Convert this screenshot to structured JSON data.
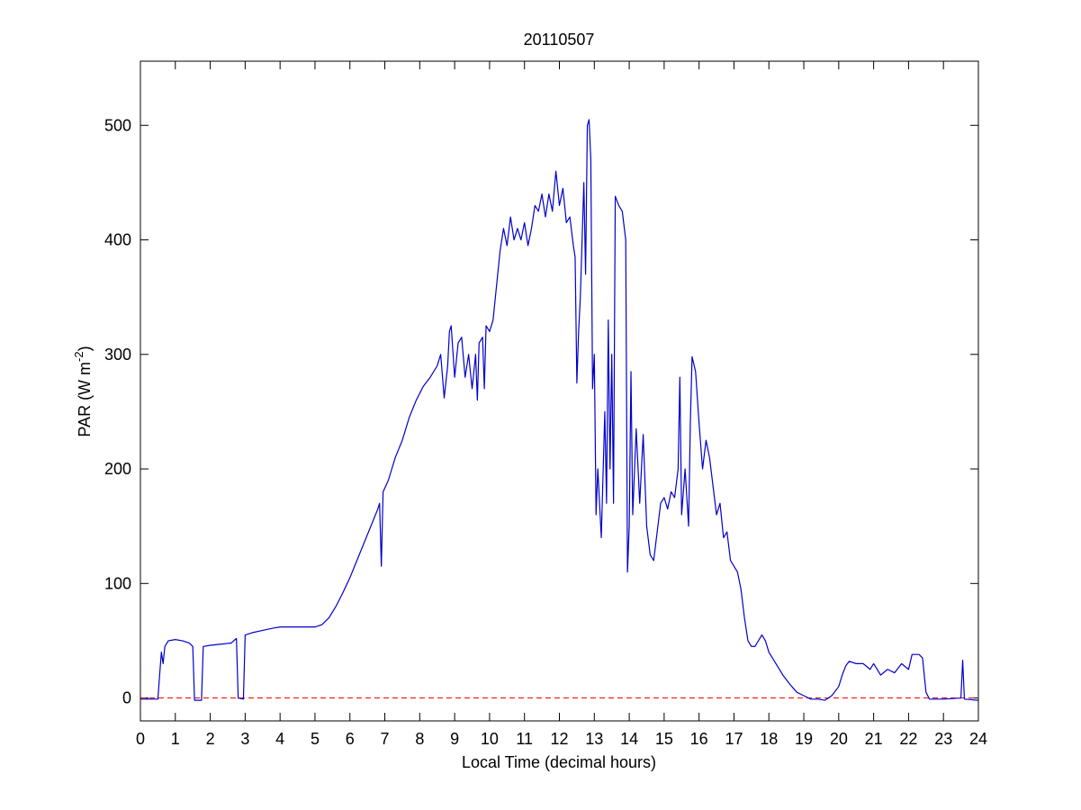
{
  "chart_data": {
    "type": "line",
    "title": "20110507",
    "xlabel": "Local Time (decimal hours)",
    "ylabel": {
      "text": "PAR (W m",
      "superscript": "-2",
      "suffix": ")"
    },
    "xlim": [
      0,
      24
    ],
    "ylim": [
      -20,
      556
    ],
    "xticks": [
      0,
      1,
      2,
      3,
      4,
      5,
      6,
      7,
      8,
      9,
      10,
      11,
      12,
      13,
      14,
      15,
      16,
      17,
      18,
      19,
      20,
      21,
      22,
      23,
      24
    ],
    "yticks": [
      0,
      100,
      200,
      300,
      400,
      500
    ],
    "grid": false,
    "reference_line": {
      "y": 0,
      "color": "#ff0000",
      "style": "dashed"
    },
    "x": [
      0,
      0.5,
      0.55,
      0.6,
      0.65,
      0.7,
      0.8,
      1.0,
      1.2,
      1.4,
      1.5,
      1.55,
      1.75,
      1.8,
      2.0,
      2.3,
      2.6,
      2.75,
      2.8,
      2.95,
      3.0,
      3.2,
      3.5,
      3.8,
      4.0,
      4.5,
      5.0,
      5.2,
      5.4,
      5.6,
      5.8,
      6.0,
      6.2,
      6.4,
      6.6,
      6.8,
      6.85,
      6.9,
      6.95,
      7.1,
      7.3,
      7.5,
      7.7,
      7.9,
      8.1,
      8.3,
      8.5,
      8.6,
      8.7,
      8.8,
      8.85,
      8.9,
      9.0,
      9.1,
      9.2,
      9.3,
      9.4,
      9.5,
      9.6,
      9.65,
      9.7,
      9.8,
      9.85,
      9.9,
      10.0,
      10.1,
      10.2,
      10.3,
      10.4,
      10.5,
      10.6,
      10.7,
      10.8,
      10.9,
      11.0,
      11.1,
      11.2,
      11.3,
      11.4,
      11.5,
      11.6,
      11.7,
      11.8,
      11.9,
      12.0,
      12.1,
      12.2,
      12.3,
      12.4,
      12.45,
      12.5,
      12.55,
      12.6,
      12.7,
      12.75,
      12.8,
      12.85,
      12.9,
      12.95,
      13.0,
      13.05,
      13.1,
      13.2,
      13.3,
      13.35,
      13.4,
      13.45,
      13.5,
      13.55,
      13.6,
      13.7,
      13.8,
      13.9,
      13.95,
      14.0,
      14.05,
      14.1,
      14.2,
      14.3,
      14.4,
      14.5,
      14.6,
      14.7,
      14.8,
      14.9,
      15.0,
      15.1,
      15.2,
      15.3,
      15.4,
      15.45,
      15.5,
      15.6,
      15.7,
      15.75,
      15.8,
      15.9,
      16.0,
      16.1,
      16.2,
      16.3,
      16.4,
      16.5,
      16.6,
      16.7,
      16.8,
      16.9,
      17.0,
      17.1,
      17.2,
      17.3,
      17.4,
      17.5,
      17.6,
      17.7,
      17.8,
      17.9,
      18.0,
      18.2,
      18.4,
      18.6,
      18.8,
      19.0,
      19.2,
      19.4,
      19.6,
      19.8,
      20.0,
      20.1,
      20.2,
      20.3,
      20.5,
      20.7,
      20.9,
      21.0,
      21.2,
      21.4,
      21.6,
      21.8,
      22.0,
      22.1,
      22.3,
      22.4,
      22.5,
      22.6,
      23.0,
      23.5,
      23.55,
      23.6,
      24.0
    ],
    "series": [
      {
        "name": "PAR",
        "color": "#0000cc",
        "values": [
          -1,
          -1,
          20,
          40,
          30,
          45,
          50,
          51,
          50,
          48,
          45,
          -2,
          -2,
          45,
          46,
          47,
          48,
          52,
          0,
          -1,
          55,
          57,
          59,
          61,
          62,
          62,
          62,
          64,
          70,
          80,
          92,
          105,
          120,
          135,
          150,
          165,
          170,
          115,
          180,
          190,
          210,
          225,
          245,
          260,
          272,
          280,
          290,
          300,
          262,
          290,
          320,
          325,
          280,
          310,
          315,
          280,
          300,
          270,
          300,
          260,
          310,
          315,
          270,
          325,
          320,
          330,
          360,
          390,
          410,
          395,
          420,
          400,
          410,
          400,
          415,
          395,
          410,
          430,
          425,
          440,
          420,
          440,
          425,
          460,
          430,
          445,
          415,
          420,
          395,
          385,
          275,
          320,
          350,
          450,
          370,
          500,
          505,
          470,
          270,
          300,
          160,
          200,
          140,
          250,
          170,
          330,
          200,
          300,
          170,
          438,
          430,
          425,
          400,
          110,
          150,
          285,
          160,
          235,
          170,
          230,
          150,
          125,
          120,
          145,
          170,
          175,
          165,
          180,
          175,
          200,
          280,
          160,
          200,
          150,
          240,
          298,
          285,
          240,
          200,
          225,
          210,
          185,
          160,
          170,
          140,
          145,
          120,
          115,
          110,
          95,
          70,
          50,
          45,
          45,
          50,
          55,
          50,
          40,
          30,
          20,
          12,
          5,
          2,
          -1,
          -1,
          -2,
          2,
          10,
          20,
          28,
          32,
          30,
          30,
          25,
          30,
          20,
          25,
          22,
          30,
          25,
          38,
          38,
          35,
          5,
          -1,
          -1,
          0,
          33,
          -1,
          -2
        ]
      }
    ]
  }
}
